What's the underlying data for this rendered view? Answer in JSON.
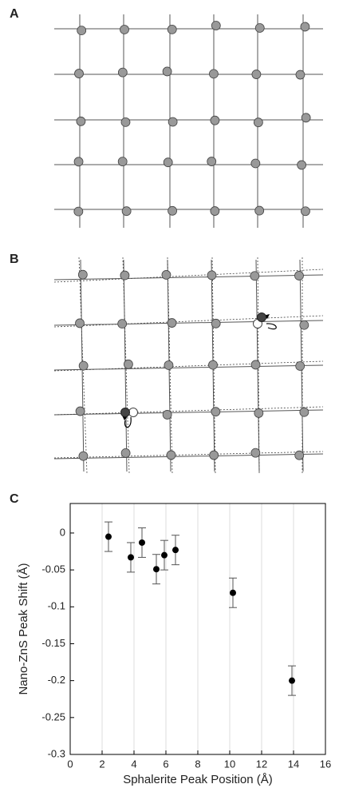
{
  "panel_labels": [
    "A",
    "B",
    "C"
  ],
  "chart_data": {
    "type": "scatter",
    "x_label": "Sphalerite Peak Position (Å)",
    "y_label": "Nano-ZnS Peak Shift (Å)",
    "x": [
      2.4,
      3.8,
      4.5,
      5.4,
      5.9,
      6.6,
      10.2,
      13.9
    ],
    "y": [
      -0.005,
      -0.033,
      -0.013,
      -0.049,
      -0.03,
      -0.023,
      -0.081,
      -0.2
    ],
    "errors": [
      0.02,
      0.02,
      0.02,
      0.02,
      0.02,
      0.02,
      0.02,
      0.02
    ],
    "color": "#000000",
    "xlim": [
      0,
      16
    ],
    "xticks": [
      0,
      2,
      4,
      6,
      8,
      10,
      12,
      14,
      16
    ],
    "ylim": [
      -0.3,
      0.04
    ],
    "yticks": [
      0,
      -0.05,
      -0.1,
      -0.15,
      -0.2,
      -0.25,
      -0.3
    ],
    "grid": "x"
  }
}
